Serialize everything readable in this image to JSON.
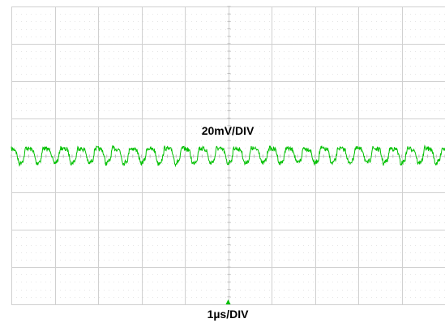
{
  "chart_data": {
    "type": "line",
    "x_divisions": 10,
    "y_divisions": 8,
    "minor_ticks_per_division": 5,
    "grid": true,
    "x_range_div": [
      0,
      10
    ],
    "y_range_div": [
      -4,
      4
    ],
    "vertical_scale_label": "20mV/DIV",
    "horizontal_scale_label": "1µs/DIV",
    "series": [
      {
        "color": "#00c000",
        "waveform": "periodic ripple",
        "periods_on_screen": 25,
        "baseline_div": 0.0,
        "peak_to_peak_div": 0.4,
        "noise_div": 0.06
      }
    ],
    "trigger_marker_color": "#00c000"
  }
}
